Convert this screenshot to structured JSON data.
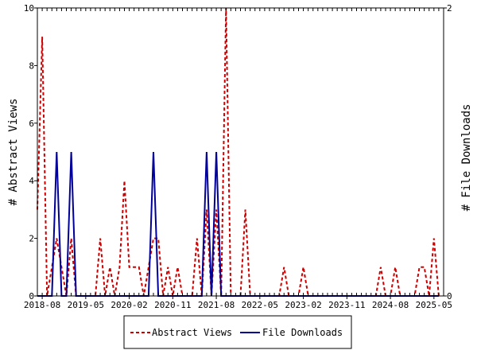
{
  "chart_data": {
    "type": "line",
    "title": "",
    "ylabel": "# Abstract Views",
    "y2label": "# File Downloads",
    "ylim": [
      0,
      10
    ],
    "y2lim": [
      0,
      2
    ],
    "yticks": [
      "0",
      "2",
      "4",
      "6",
      "8",
      "10"
    ],
    "y2ticks": [
      "0",
      "2"
    ],
    "xlim": [
      "2018-07",
      "2025-07"
    ],
    "xtick_labels": [
      "2018-08",
      "2019-05",
      "2020-02",
      "2020-11",
      "2021-08",
      "2022-05",
      "2023-02",
      "2023-11",
      "2024-08",
      "2025-05"
    ],
    "xtick_dates": [
      "2018-08",
      "2019-05",
      "2020-02",
      "2020-11",
      "2021-08",
      "2022-05",
      "2023-02",
      "2023-11",
      "2024-08",
      "2025-05"
    ],
    "legend_position": "bottom",
    "grid": false,
    "colors": {
      "abstract_views": "#cc0000",
      "file_downloads": "#000099"
    },
    "series": [
      {
        "name": "Abstract Views",
        "axis": "left",
        "style": "dashed",
        "points": [
          [
            "2018-07",
            3
          ],
          [
            "2018-08",
            9
          ],
          [
            "2018-09",
            0
          ],
          [
            "2018-10",
            1
          ],
          [
            "2018-11",
            2
          ],
          [
            "2018-12",
            1
          ],
          [
            "2019-01",
            0
          ],
          [
            "2019-02",
            2
          ],
          [
            "2019-03",
            0
          ],
          [
            "2019-04",
            0
          ],
          [
            "2019-05",
            0
          ],
          [
            "2019-06",
            0
          ],
          [
            "2019-07",
            0
          ],
          [
            "2019-08",
            2
          ],
          [
            "2019-09",
            0
          ],
          [
            "2019-10",
            1
          ],
          [
            "2019-11",
            0
          ],
          [
            "2019-12",
            1
          ],
          [
            "2020-01",
            4
          ],
          [
            "2020-02",
            1
          ],
          [
            "2020-03",
            1
          ],
          [
            "2020-04",
            1
          ],
          [
            "2020-05",
            0
          ],
          [
            "2020-06",
            1
          ],
          [
            "2020-07",
            2
          ],
          [
            "2020-08",
            2
          ],
          [
            "2020-09",
            0
          ],
          [
            "2020-10",
            1
          ],
          [
            "2020-11",
            0
          ],
          [
            "2020-12",
            1
          ],
          [
            "2021-01",
            0
          ],
          [
            "2021-02",
            0
          ],
          [
            "2021-03",
            0
          ],
          [
            "2021-04",
            2
          ],
          [
            "2021-05",
            0
          ],
          [
            "2021-06",
            3
          ],
          [
            "2021-07",
            0
          ],
          [
            "2021-08",
            3
          ],
          [
            "2021-09",
            0
          ],
          [
            "2021-10",
            10
          ],
          [
            "2021-11",
            0
          ],
          [
            "2021-12",
            0
          ],
          [
            "2022-01",
            0
          ],
          [
            "2022-02",
            3
          ],
          [
            "2022-03",
            0
          ],
          [
            "2022-04",
            0
          ],
          [
            "2022-05",
            0
          ],
          [
            "2022-06",
            0
          ],
          [
            "2022-07",
            0
          ],
          [
            "2022-08",
            0
          ],
          [
            "2022-09",
            0
          ],
          [
            "2022-10",
            1
          ],
          [
            "2022-11",
            0
          ],
          [
            "2022-12",
            0
          ],
          [
            "2023-01",
            0
          ],
          [
            "2023-02",
            1
          ],
          [
            "2023-03",
            0
          ],
          [
            "2024-05",
            0
          ],
          [
            "2024-06",
            1
          ],
          [
            "2024-07",
            0
          ],
          [
            "2024-08",
            0
          ],
          [
            "2024-09",
            1
          ],
          [
            "2024-10",
            0
          ],
          [
            "2025-01",
            0
          ],
          [
            "2025-02",
            1
          ],
          [
            "2025-03",
            1
          ],
          [
            "2025-04",
            0
          ],
          [
            "2025-05",
            2
          ],
          [
            "2025-06",
            0
          ]
        ]
      },
      {
        "name": "File Downloads",
        "axis": "right",
        "style": "solid",
        "points": [
          [
            "2018-07",
            0
          ],
          [
            "2018-10",
            0
          ],
          [
            "2018-11",
            1
          ],
          [
            "2018-12",
            0
          ],
          [
            "2019-01",
            0
          ],
          [
            "2019-02",
            1
          ],
          [
            "2019-03",
            0
          ],
          [
            "2020-06",
            0
          ],
          [
            "2020-07",
            1
          ],
          [
            "2020-08",
            0
          ],
          [
            "2021-05",
            0
          ],
          [
            "2021-06",
            1
          ],
          [
            "2021-07",
            0
          ],
          [
            "2021-08",
            1
          ],
          [
            "2021-09",
            0
          ],
          [
            "2025-06",
            0
          ]
        ]
      }
    ]
  }
}
